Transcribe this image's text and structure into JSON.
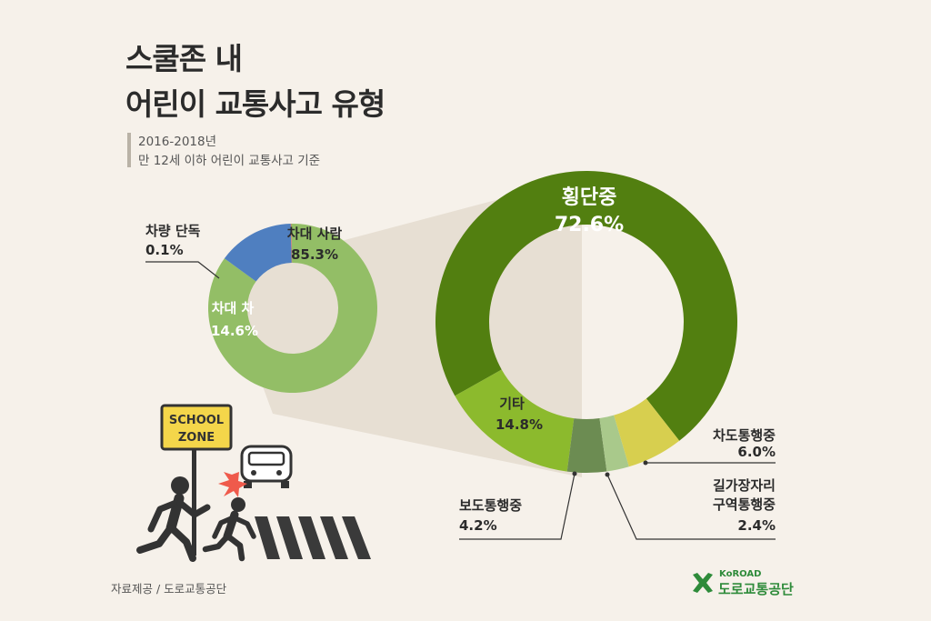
{
  "header": {
    "title_line1": "스쿨존 내",
    "title_line2": "어린이 교통사고 유형",
    "subtitle_line1": "2016-2018년",
    "subtitle_line2": "만 12세 이하 어린이 교통사고 기준"
  },
  "footer": {
    "source": "자료제공 / 도로교통공단",
    "logo_en": "KoROAD",
    "logo_ko": "도로교통공단"
  },
  "illustration": {
    "sign_line1": "SCHOOL",
    "sign_line2": "ZONE"
  },
  "colors": {
    "background": "#f6f1ea",
    "car_person": "#93be66",
    "car_car": "#4f7fc0",
    "car_single": "#d9534f",
    "crossing": "#527f10",
    "other": "#8cba2d",
    "sidewalk": "#6c8c52",
    "roadside": "#a9c98b",
    "roadway": "#d7cf4f"
  },
  "chart_data": [
    {
      "type": "pie",
      "title": "",
      "slices": [
        {
          "label": "차대 사람",
          "value": 85.3,
          "value_label": "85.3%"
        },
        {
          "label": "차대 차",
          "value": 14.6,
          "value_label": "14.6%"
        },
        {
          "label": "차량 단독",
          "value": 0.1,
          "value_label": "0.1%"
        }
      ]
    },
    {
      "type": "pie",
      "title": "",
      "slices": [
        {
          "label": "횡단중",
          "value": 72.6,
          "value_label": "72.6%"
        },
        {
          "label": "기타",
          "value": 14.8,
          "value_label": "14.8%"
        },
        {
          "label": "보도통행중",
          "value": 4.2,
          "value_label": "4.2%"
        },
        {
          "label": "길가장자리 구역통행중",
          "label_line1": "길가장자리",
          "label_line2": "구역통행중",
          "value": 2.4,
          "value_label": "2.4%"
        },
        {
          "label": "차도통행중",
          "value": 6.0,
          "value_label": "6.0%"
        }
      ]
    }
  ]
}
